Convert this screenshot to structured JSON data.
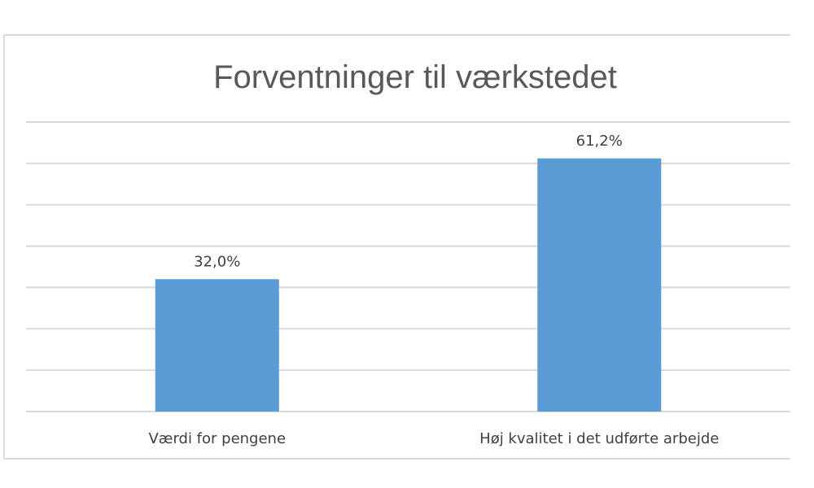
{
  "chart_data": {
    "type": "bar",
    "title": "Forventninger  til værkstedet",
    "categories": [
      "Værdi for pengene",
      "Høj kvalitet i det udførte arbejde"
    ],
    "values": [
      32.0,
      61.2
    ],
    "data_labels": [
      "32,0%",
      "61,2%"
    ],
    "ylim": [
      0,
      70
    ],
    "gridlines": true,
    "gridline_step": 10,
    "bar_color": "#5b9bd5",
    "grid_color": "#d9d9d9",
    "legend": "none"
  }
}
